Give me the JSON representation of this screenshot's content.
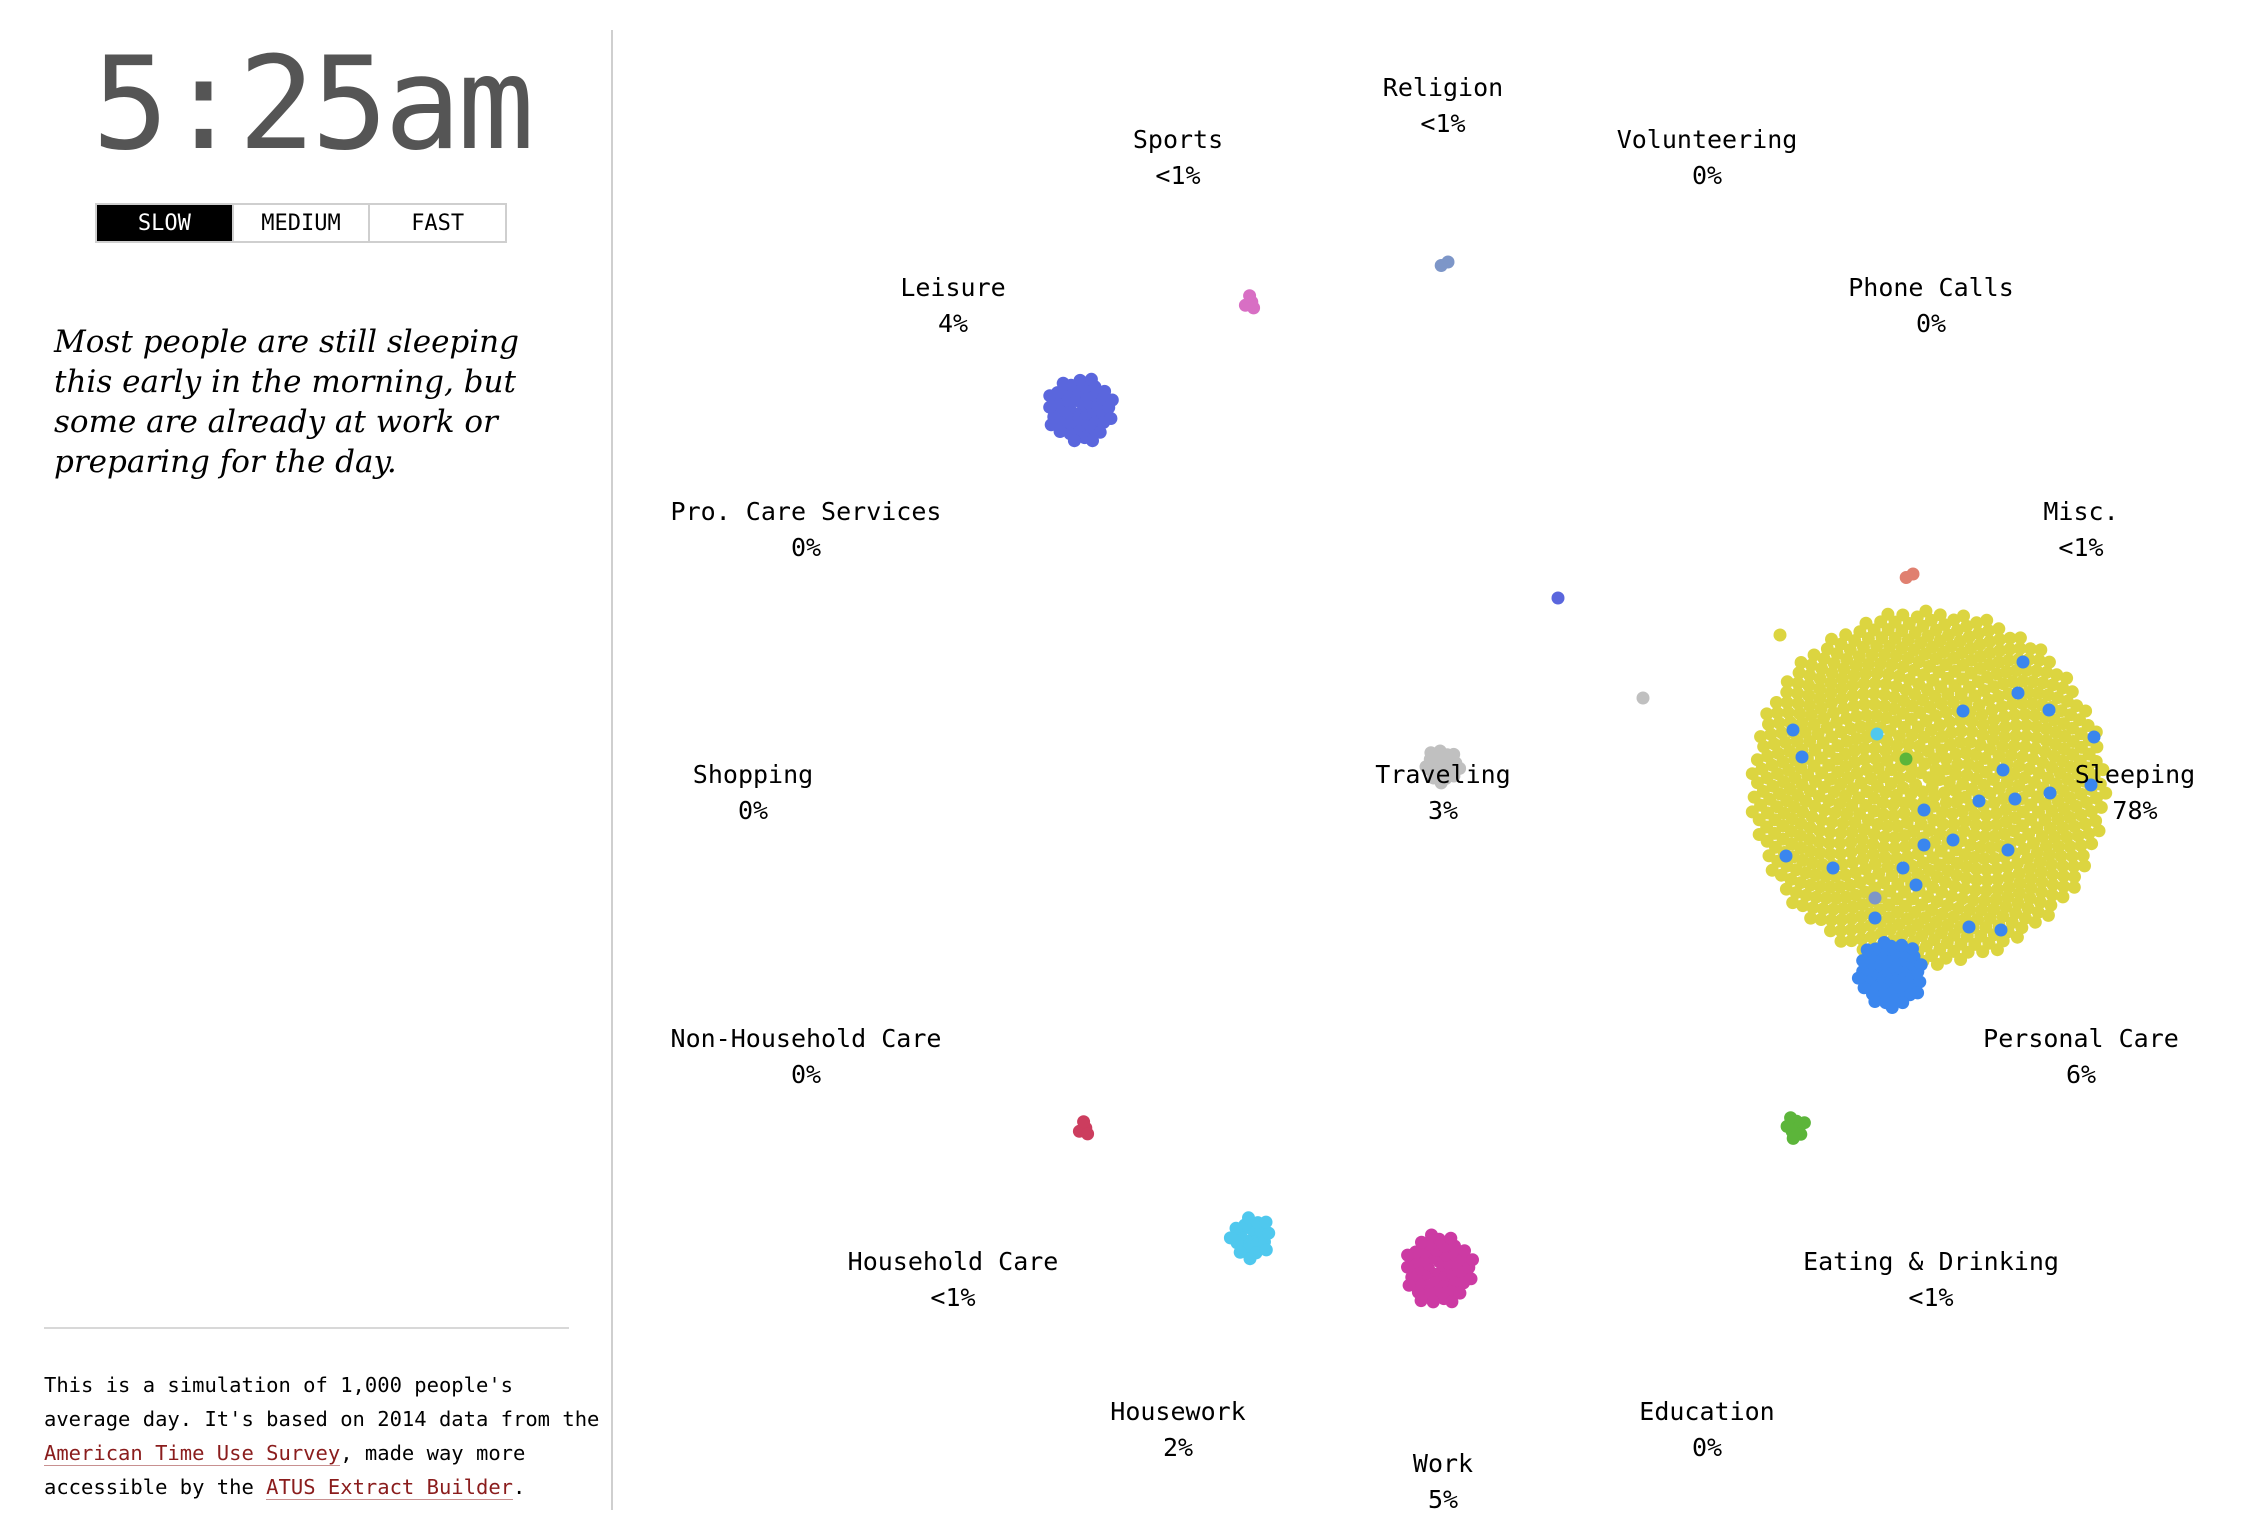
{
  "clock": {
    "time": "5:25am"
  },
  "speed_controls": {
    "slow": "SLOW",
    "medium": "MEDIUM",
    "fast": "FAST",
    "selected": "SLOW"
  },
  "description": "Most people are still sleeping this early in the morning, but some are already at work or preparing for the day.",
  "footer": {
    "text_1": "This is a simulation of 1,000 people's average day. It's based on 2014 data from the ",
    "link_1": "American Time Use Survey",
    "text_2": ", made way more accessible by the ",
    "link_2": "ATUS Extract Builder",
    "text_3": "."
  },
  "activities": [
    {
      "name": "Religion",
      "percent": "<1%",
      "color": "#7d96c8"
    },
    {
      "name": "Sports",
      "percent": "<1%",
      "color": "#d86fc4"
    },
    {
      "name": "Volunteering",
      "percent": "0%",
      "color": "#999999"
    },
    {
      "name": "Leisure",
      "percent": "4%",
      "color": "#5a66dd"
    },
    {
      "name": "Phone Calls",
      "percent": "0%",
      "color": "#999999"
    },
    {
      "name": "Pro. Care Services",
      "percent": "0%",
      "color": "#999999"
    },
    {
      "name": "Misc.",
      "percent": "<1%",
      "color": "#e08070"
    },
    {
      "name": "Shopping",
      "percent": "0%",
      "color": "#999999"
    },
    {
      "name": "Traveling",
      "percent": "3%",
      "color": "#c0c0c0"
    },
    {
      "name": "Sleeping",
      "percent": "78%",
      "color": "#dcd540"
    },
    {
      "name": "Non-Household Care",
      "percent": "0%",
      "color": "#999999"
    },
    {
      "name": "Personal Care",
      "percent": "6%",
      "color": "#3a86ee"
    },
    {
      "name": "Household Care",
      "percent": "<1%",
      "color": "#cc3d5e"
    },
    {
      "name": "Eating & Drinking",
      "percent": "<1%",
      "color": "#5cb53a"
    },
    {
      "name": "Housework",
      "percent": "2%",
      "color": "#4fc8ee"
    },
    {
      "name": "Education",
      "percent": "0%",
      "color": "#999999"
    },
    {
      "name": "Work",
      "percent": "5%",
      "color": "#cc3aa3"
    }
  ]
}
